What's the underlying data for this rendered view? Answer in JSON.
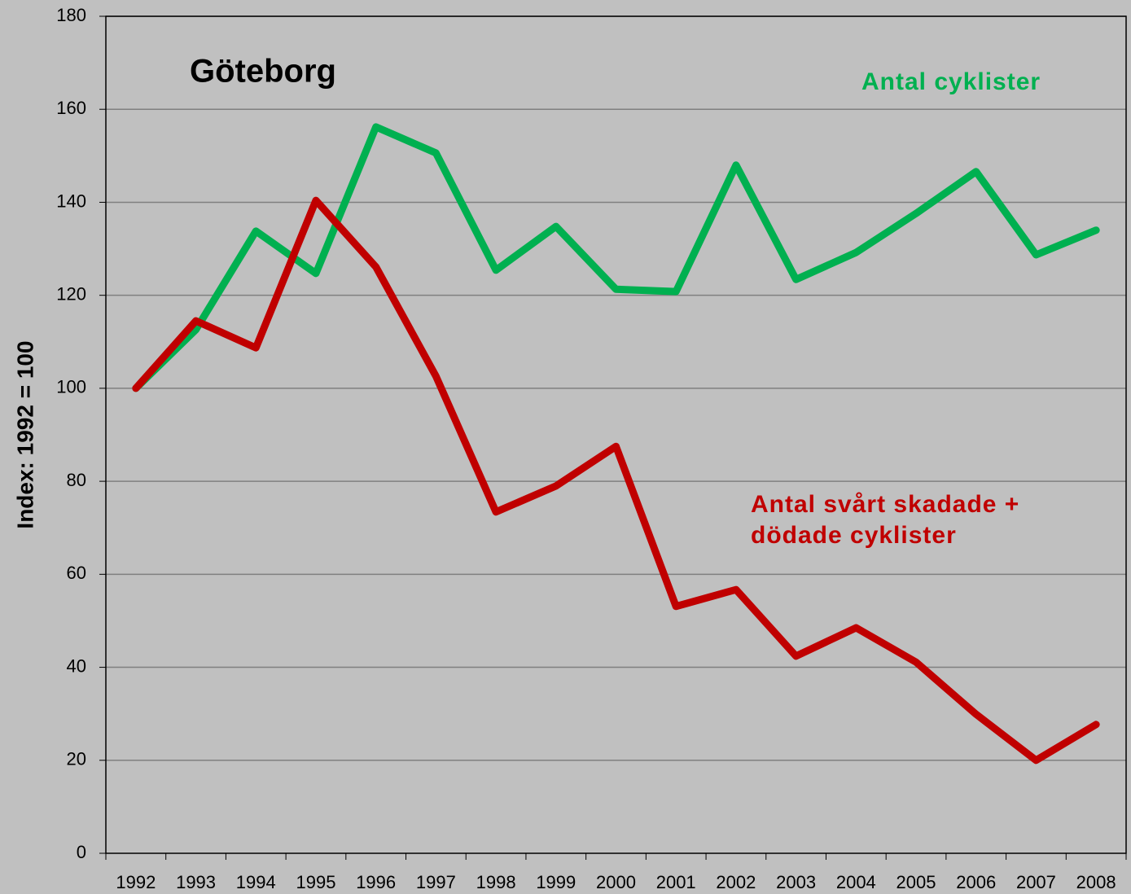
{
  "chart_data": {
    "type": "line",
    "title": "Göteborg",
    "ylabel": "Index: 1992 = 100",
    "categories": [
      "1992",
      "1993",
      "1994",
      "1995",
      "1996",
      "1997",
      "1998",
      "1999",
      "2000",
      "2001",
      "2002",
      "2003",
      "2004",
      "2005",
      "2006",
      "2007",
      "2008"
    ],
    "series": [
      {
        "name": "Antal cyklister",
        "color": "#00b050",
        "values": [
          100,
          112.6,
          133.8,
          124.7,
          156.2,
          150.6,
          125.4,
          134.8,
          121.3,
          120.8,
          148,
          123.4,
          129.2,
          137.6,
          146.6,
          128.7,
          134
        ]
      },
      {
        "name": "Antal svårt skadade + dödade cyklister",
        "color": "#c00000",
        "values": [
          100,
          114.5,
          108.7,
          140.4,
          126.1,
          102.6,
          73.4,
          79,
          87.5,
          53.1,
          56.7,
          42.4,
          48.5,
          41.1,
          29.9,
          20,
          27.7
        ]
      }
    ],
    "ylim": [
      0,
      180
    ],
    "yticks": [
      0,
      20,
      40,
      60,
      80,
      100,
      120,
      140,
      160,
      180
    ],
    "grid": true
  }
}
